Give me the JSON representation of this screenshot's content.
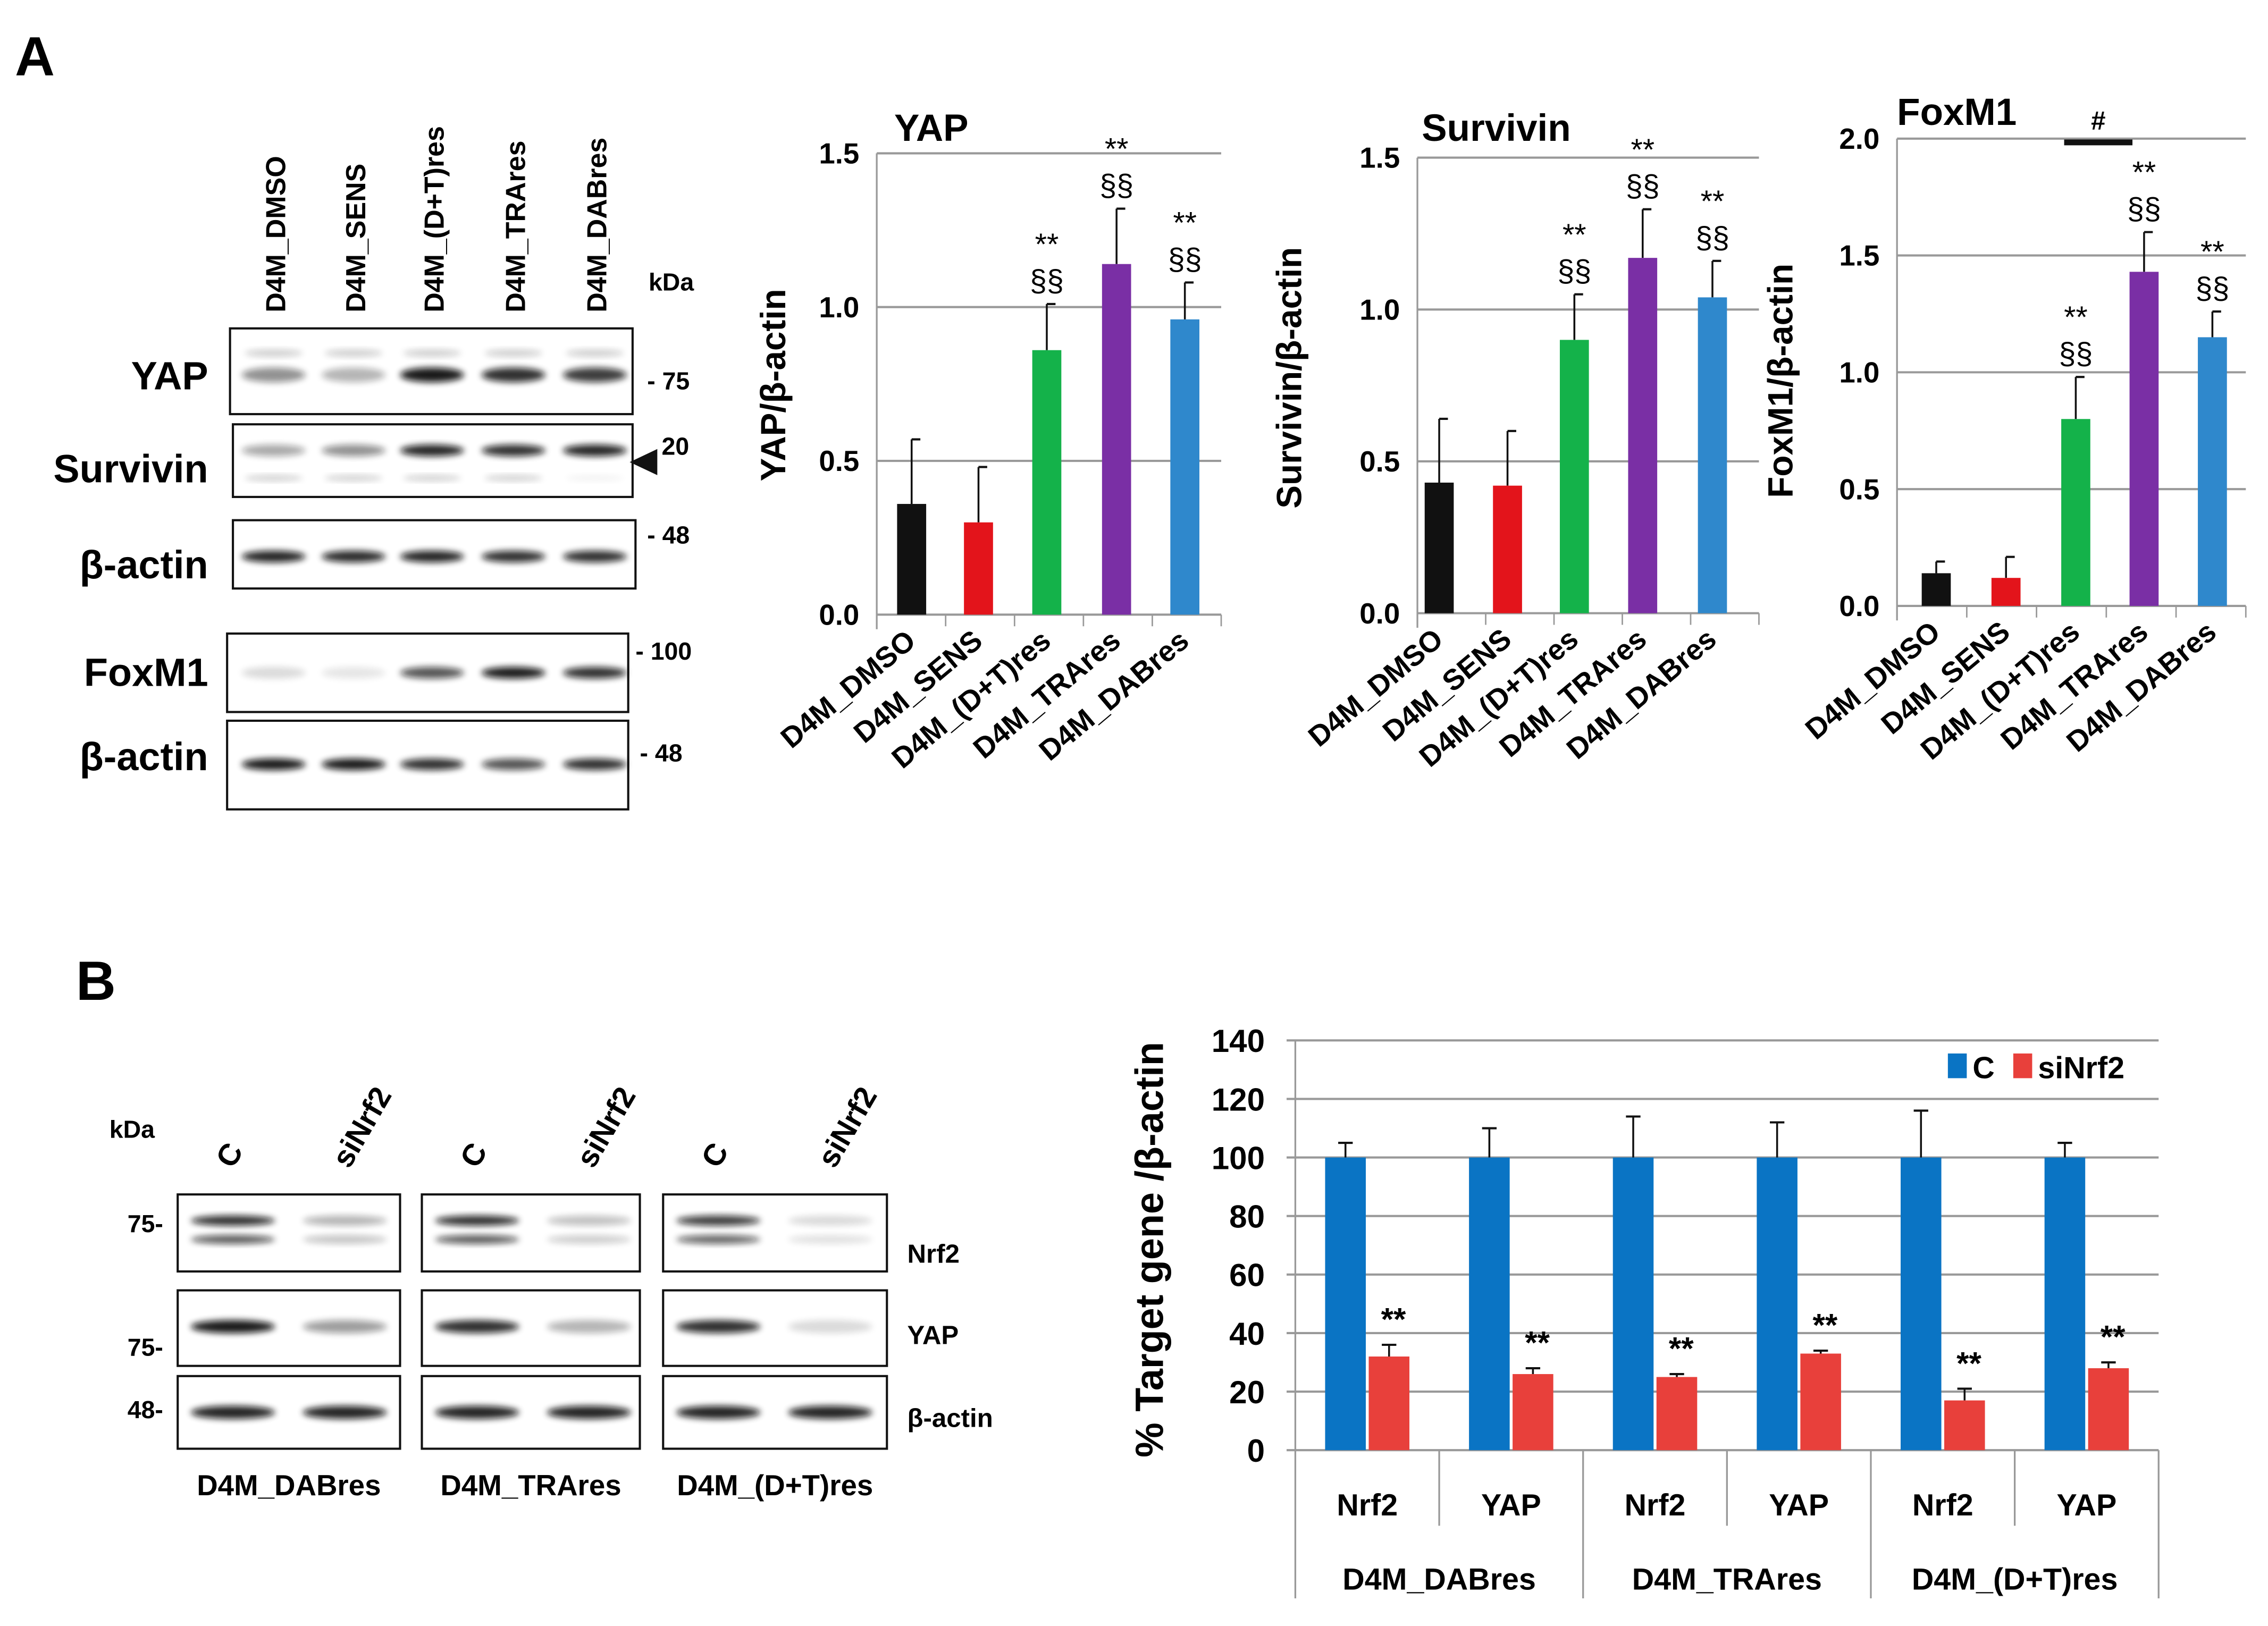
{
  "panel_a": {
    "label": "A",
    "blot": {
      "kda_label": "kDa",
      "lanes": [
        "D4M_DMSO",
        "D4M_SENS",
        "D4M_(D+T)res",
        "D4M_TRAres",
        "D4M_DABres"
      ],
      "rows": [
        {
          "label": "YAP",
          "marker": "- 75"
        },
        {
          "label": "Survivin",
          "marker": "20"
        },
        {
          "label": "β-actin",
          "marker": "- 48"
        },
        {
          "label": "FoxM1",
          "marker": "- 100"
        },
        {
          "label": "β-actin",
          "marker": "- 48"
        }
      ]
    }
  },
  "panel_b": {
    "label": "B",
    "blot": {
      "kda_label": "kDa",
      "lanes": [
        "C",
        "siNrf2"
      ],
      "groups": [
        "D4M_DABres",
        "D4M_TRAres",
        "D4M_(D+T)res"
      ],
      "rows": [
        {
          "label": "Nrf2",
          "marker": "75-"
        },
        {
          "label": "YAP",
          "marker": "75-"
        },
        {
          "label": "β-actin",
          "marker": "48-"
        }
      ]
    }
  },
  "chart_data": [
    {
      "type": "bar",
      "title": "YAP",
      "xlabel": "",
      "ylabel": "YAP/β-actin",
      "categories": [
        "D4M_DMSO",
        "D4M_SENS",
        "D4M_(D+T)res",
        "D4M_TRAres",
        "D4M_DABres"
      ],
      "values": [
        0.36,
        0.3,
        0.86,
        1.14,
        0.96
      ],
      "errors": [
        0.21,
        0.18,
        0.15,
        0.18,
        0.12
      ],
      "colors": [
        "#111111",
        "#e3141b",
        "#14b24a",
        "#7a2fa5",
        "#2f88cc"
      ],
      "annotations": [
        [
          "",
          ""
        ],
        [
          "",
          ""
        ],
        [
          "**",
          "§§"
        ],
        [
          "**",
          "§§"
        ],
        [
          "**",
          "§§"
        ]
      ],
      "ylim": [
        0,
        1.5
      ],
      "yticks": [
        "0.0",
        "0.5",
        "1.0",
        "1.5"
      ],
      "grid": true
    },
    {
      "type": "bar",
      "title": "Survivin",
      "xlabel": "",
      "ylabel": "Survivin/β-actin",
      "categories": [
        "D4M_DMSO",
        "D4M_SENS",
        "D4M_(D+T)res",
        "D4M_TRAres",
        "D4M_DABres"
      ],
      "values": [
        0.43,
        0.42,
        0.9,
        1.17,
        1.04
      ],
      "errors": [
        0.21,
        0.18,
        0.15,
        0.16,
        0.12
      ],
      "colors": [
        "#111111",
        "#e3141b",
        "#14b24a",
        "#7a2fa5",
        "#2f88cc"
      ],
      "annotations": [
        [
          "",
          ""
        ],
        [
          "",
          ""
        ],
        [
          "**",
          "§§"
        ],
        [
          "**",
          "§§"
        ],
        [
          "**",
          "§§"
        ]
      ],
      "ylim": [
        0,
        1.5
      ],
      "yticks": [
        "0.0",
        "0.5",
        "1.0",
        "1.5"
      ],
      "grid": true
    },
    {
      "type": "bar",
      "title": "FoxM1",
      "xlabel": "",
      "ylabel": "FoxM1/β-actin",
      "categories": [
        "D4M_DMSO",
        "D4M_SENS",
        "D4M_(D+T)res",
        "D4M_TRAres",
        "D4M_DABres"
      ],
      "values": [
        0.14,
        0.12,
        0.8,
        1.43,
        1.15
      ],
      "errors": [
        0.05,
        0.09,
        0.18,
        0.17,
        0.11
      ],
      "colors": [
        "#111111",
        "#e3141b",
        "#14b24a",
        "#7a2fa5",
        "#2f88cc"
      ],
      "annotations": [
        [
          "",
          ""
        ],
        [
          "",
          ""
        ],
        [
          "**",
          "§§"
        ],
        [
          "**",
          "§§"
        ],
        [
          "**",
          "§§"
        ]
      ],
      "bracket": {
        "label": "#",
        "between": [
          "D4M_(D+T)res",
          "D4M_TRAres"
        ]
      },
      "ylim": [
        0,
        2.0
      ],
      "yticks": [
        "0.0",
        "0.5",
        "1.0",
        "1.5",
        "2.0"
      ],
      "grid": true
    },
    {
      "type": "bar",
      "title": "",
      "xlabel": "",
      "ylabel": "% Target gene /β-actin",
      "categories": [
        "Nrf2",
        "YAP",
        "Nrf2",
        "YAP",
        "Nrf2",
        "YAP"
      ],
      "groups": [
        "D4M_DABres",
        "D4M_TRAres",
        "D4M_(D+T)res"
      ],
      "series": [
        {
          "name": "C",
          "color": "#0a74c4",
          "values": [
            100,
            100,
            100,
            100,
            100,
            100
          ],
          "errors": [
            5,
            10,
            14,
            12,
            16,
            5
          ]
        },
        {
          "name": "siNrf2",
          "color": "#e8403b",
          "values": [
            32,
            26,
            25,
            33,
            17,
            28
          ],
          "errors": [
            4,
            2,
            1,
            1,
            4,
            2
          ]
        }
      ],
      "annotations": [
        "**",
        "**",
        "**",
        "**",
        "**",
        "**"
      ],
      "legend": "top-right",
      "ylim": [
        0,
        140
      ],
      "yticks": [
        "0",
        "20",
        "40",
        "60",
        "80",
        "100",
        "120",
        "140"
      ],
      "grid": true
    }
  ]
}
